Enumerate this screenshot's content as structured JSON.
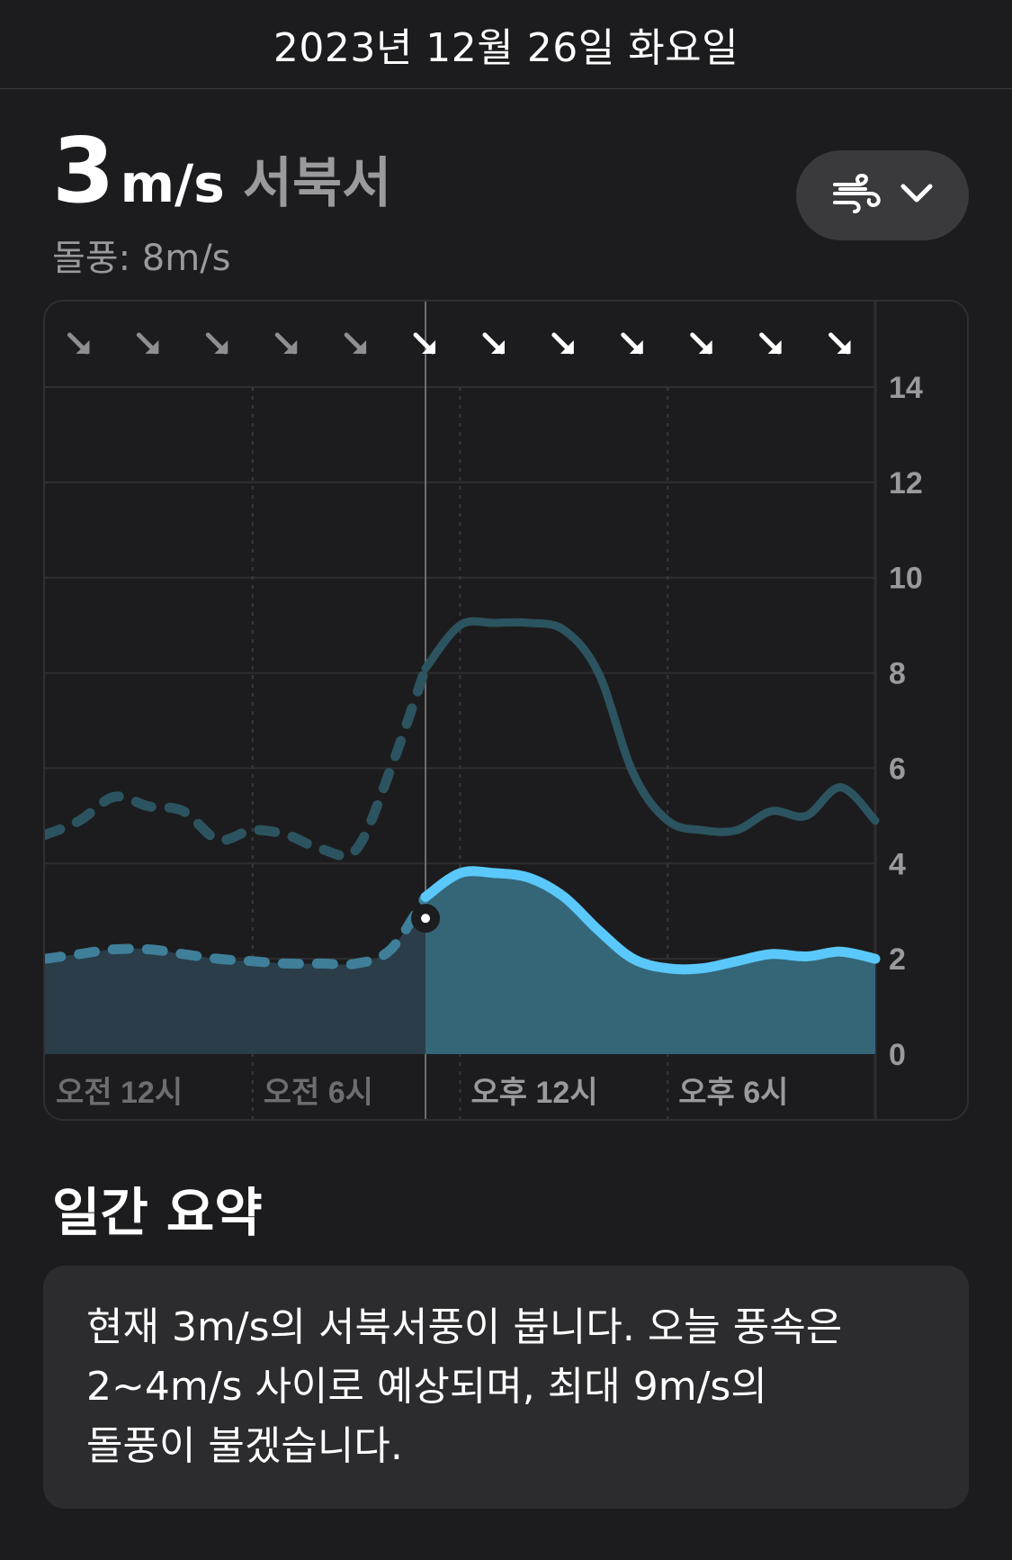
{
  "header": {
    "date": "2023년 12월 26일 화요일"
  },
  "current": {
    "speed": "3",
    "unit": "m/s",
    "direction": "서북서",
    "gust": "돌풍: 8m/s"
  },
  "picker": {
    "icon": "wind-icon",
    "chevron": "chevron-down-icon"
  },
  "chart_data": {
    "type": "area",
    "x_labels": [
      "오전 12시",
      "오전 6시",
      "오후 12시",
      "오후 6시"
    ],
    "y_ticks": [
      "0",
      "2",
      "4",
      "6",
      "8",
      "10",
      "12",
      "14"
    ],
    "ylim": [
      0,
      14
    ],
    "current_hour": 11,
    "current_value": 2.85,
    "direction_arrows": 12,
    "series": [
      {
        "key": "wind",
        "values": [
          2.0,
          2.1,
          2.2,
          2.2,
          2.1,
          2.0,
          1.95,
          1.9,
          1.9,
          1.9,
          2.2,
          3.3,
          3.8,
          3.8,
          3.7,
          3.3,
          2.6,
          2.0,
          1.8,
          1.8,
          1.95,
          2.1,
          2.05,
          2.15,
          2.0
        ],
        "color": "#5ac8fa"
      },
      {
        "key": "gust",
        "values": [
          4.6,
          4.9,
          5.4,
          5.2,
          5.1,
          4.5,
          4.7,
          4.6,
          4.3,
          4.3,
          6.0,
          8.1,
          9.0,
          9.05,
          9.05,
          8.9,
          8.0,
          5.9,
          4.9,
          4.7,
          4.7,
          5.1,
          5.0,
          5.6,
          4.9
        ],
        "color": "#2c5460"
      }
    ],
    "grid": true
  },
  "summary": {
    "title": "일간 요약",
    "text_line1": "현재 3m/s의 서북서풍이 붑니다. 오늘 풍속은",
    "text_line2": "2~4m/s 사이로 예상되며, 최대 9m/s의",
    "text_line3": "돌풍이 불겠습니다."
  }
}
